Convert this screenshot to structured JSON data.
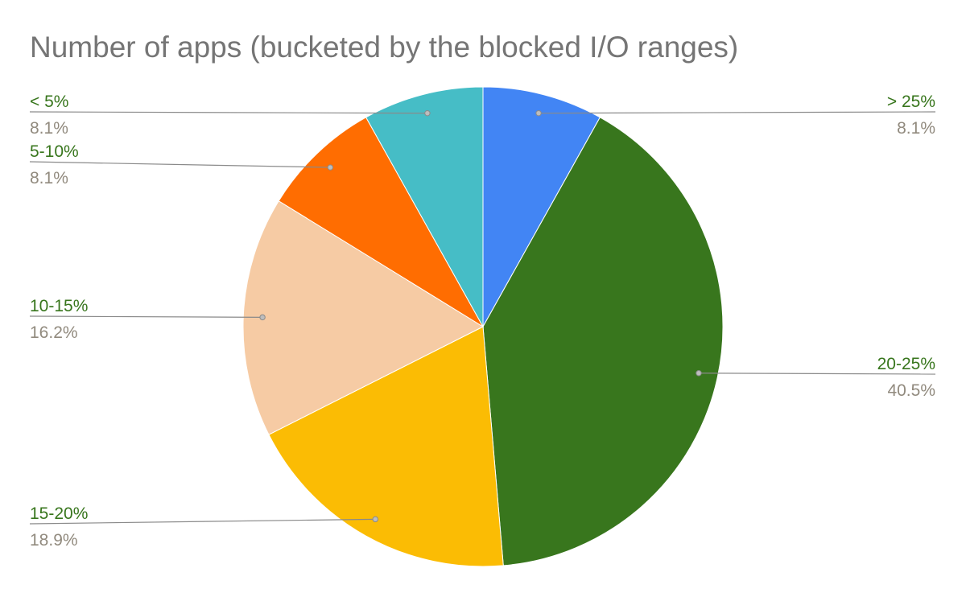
{
  "chart_data": {
    "type": "pie",
    "title": "Number of apps (bucketed by the blocked I/O ranges)",
    "slices": [
      {
        "label": "> 25%",
        "value": 8.1,
        "display": "8.1%",
        "color": "#4285f4",
        "label_color": "#38761d",
        "pct_color": "#918a7e"
      },
      {
        "label": "20-25%",
        "value": 40.5,
        "display": "40.5%",
        "color": "#38761d",
        "label_color": "#38761d",
        "pct_color": "#918a7e"
      },
      {
        "label": "15-20%",
        "value": 18.9,
        "display": "18.9%",
        "color": "#fbbc04",
        "label_color": "#38761d",
        "pct_color": "#918a7e"
      },
      {
        "label": "10-15%",
        "value": 16.2,
        "display": "16.2%",
        "color": "#f6cba4",
        "label_color": "#38761d",
        "pct_color": "#918a7e"
      },
      {
        "label": "5-10%",
        "value": 8.1,
        "display": "8.1%",
        "color": "#ff6d01",
        "label_color": "#38761d",
        "pct_color": "#918a7e"
      },
      {
        "label": "< 5%",
        "value": 8.1,
        "display": "8.1%",
        "color": "#46bdc6",
        "label_color": "#38761d",
        "pct_color": "#918a7e"
      }
    ],
    "start_angle_deg": 0,
    "direction": "clockwise",
    "legend": "none",
    "grid": false
  }
}
